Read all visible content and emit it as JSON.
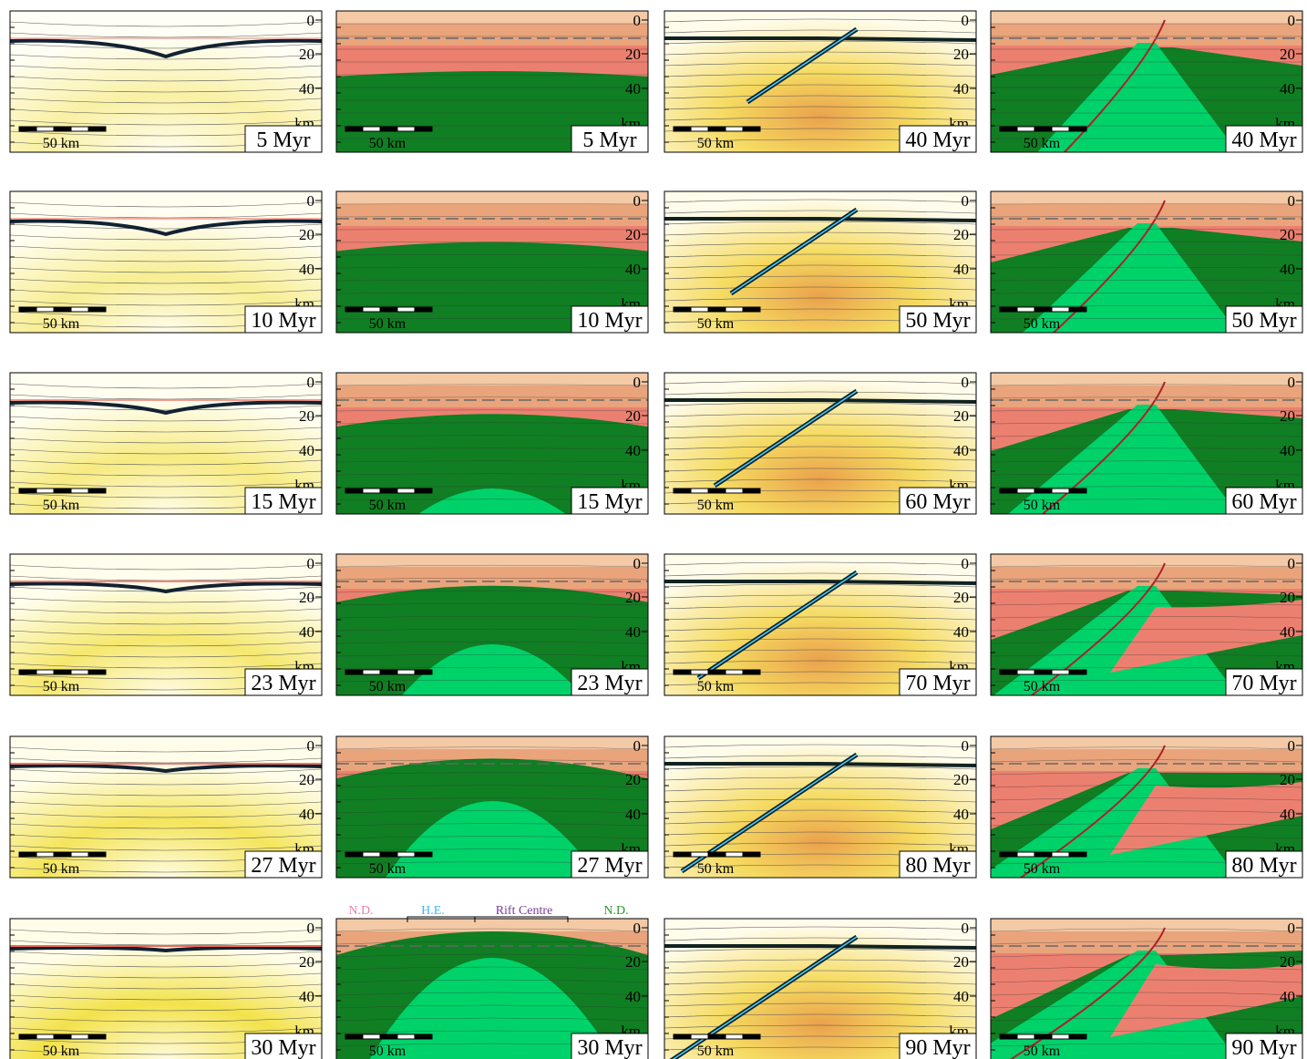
{
  "depth_ticks": [
    "0",
    "20",
    "40"
  ],
  "depth_unit": "km",
  "scale_bar": "50 km",
  "times_left": [
    "5 Myr",
    "10 Myr",
    "15 Myr",
    "23 Myr",
    "27 Myr",
    "30 Myr"
  ],
  "times_right": [
    "40 Myr",
    "50 Myr",
    "60 Myr",
    "70 Myr",
    "80 Myr",
    "90 Myr"
  ],
  "legend": [
    "N.D.",
    "H.E.",
    "Rift Centre",
    "N.D."
  ]
}
